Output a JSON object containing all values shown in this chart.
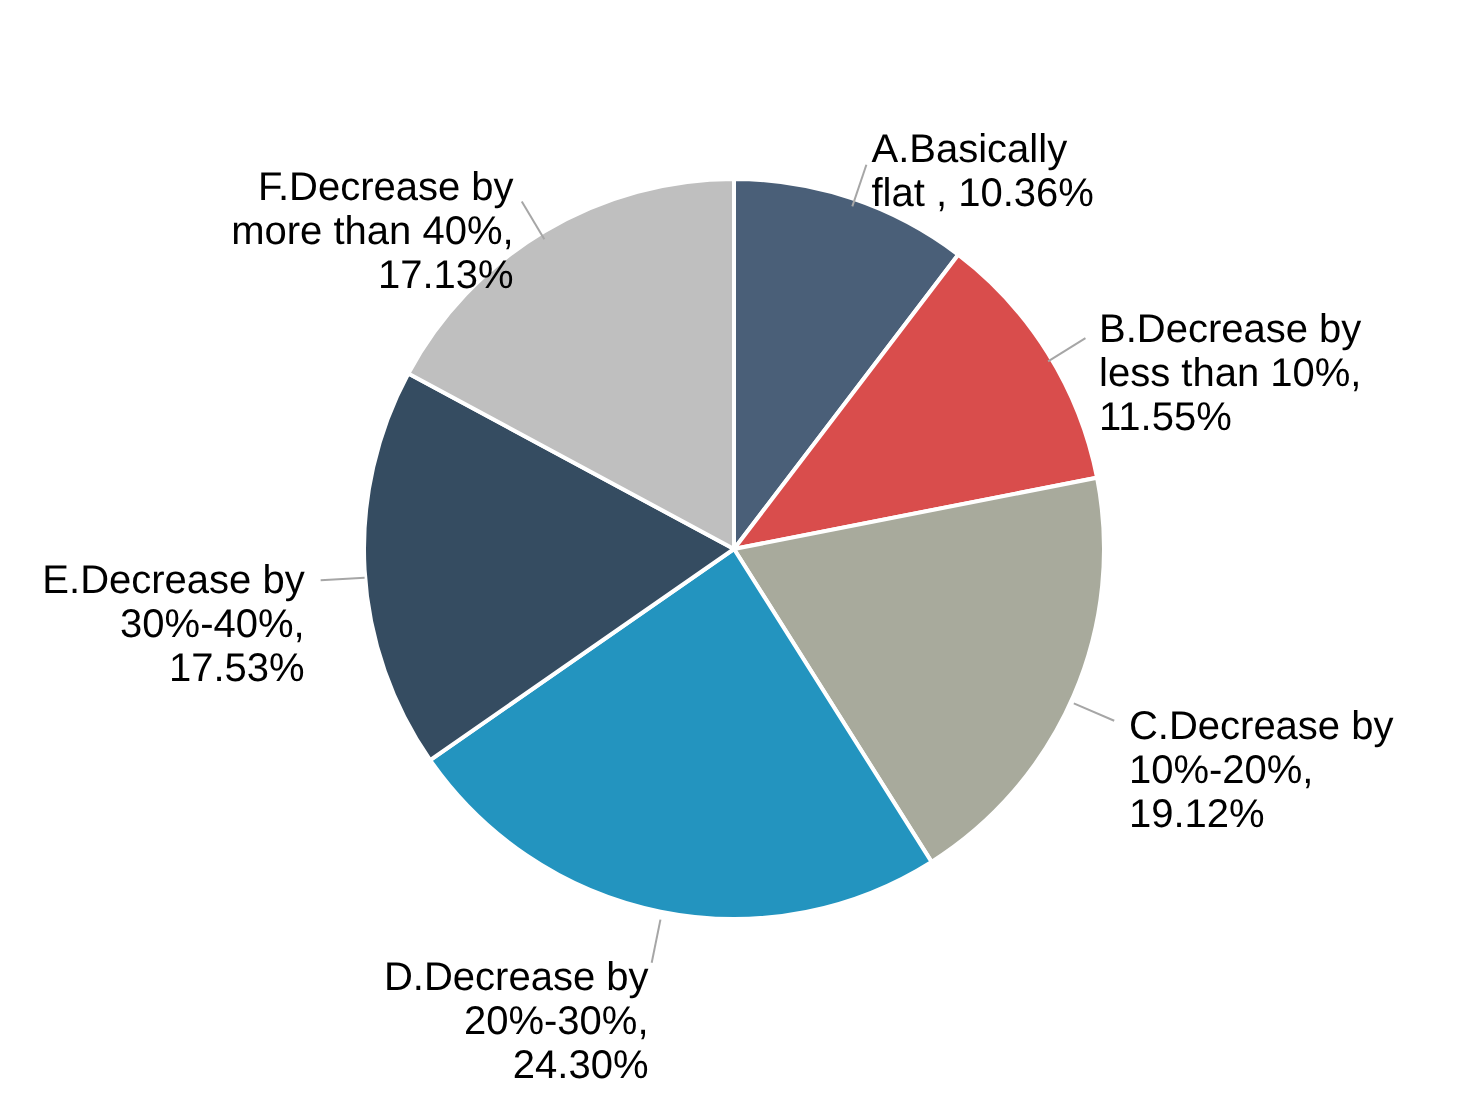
{
  "chart_data": {
    "type": "pie",
    "categories": [
      "A.Basically flat ",
      "B.Decrease by less than 10%",
      "C.Decrease by 10%-20%",
      "D.Decrease by 20%-30%",
      "E.Decrease by 30%-40%",
      "F.Decrease by more than 40%"
    ],
    "values": [
      10.36,
      11.55,
      19.12,
      24.3,
      17.53,
      17.13
    ],
    "value_labels": [
      ", 10.36%",
      ", 11.55%",
      ", 19.12%",
      ", 24.30%",
      ", 17.53%",
      ", 17.13%"
    ],
    "colors": [
      "#4a5f78",
      "#d94d4c",
      "#a8aa9c",
      "#2394bf",
      "#354c61",
      "#bfbfbf"
    ]
  }
}
